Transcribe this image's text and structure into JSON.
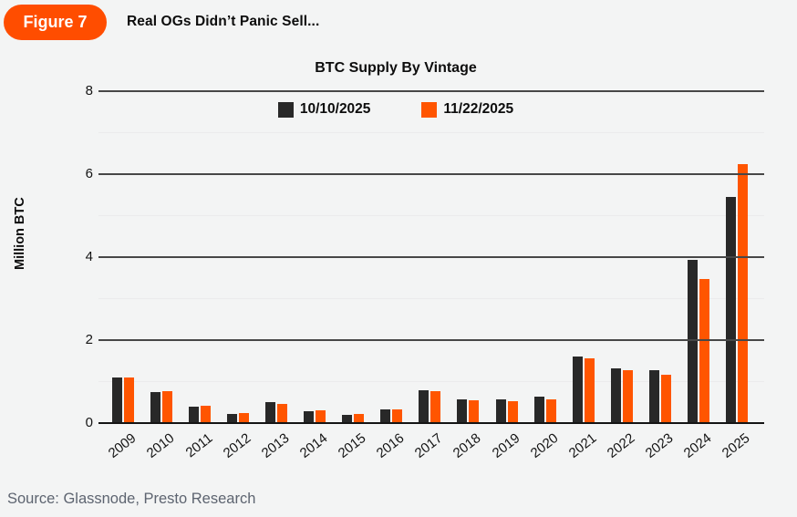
{
  "figure": {
    "badge": "Figure 7",
    "title": "Real OGs Didn’t Panic Sell..."
  },
  "chart_data": {
    "type": "bar",
    "title": "BTC Supply By Vintage",
    "xlabel": "",
    "ylabel": "Million BTC",
    "ylim": [
      0,
      8
    ],
    "yticks": [
      0,
      2,
      4,
      6,
      8
    ],
    "yticks_minor": [
      1,
      3,
      5,
      7
    ],
    "grid": "horizontal, dark major lines at even values, faint minor lines at odd values",
    "legend_position": "top center",
    "categories": [
      "2009",
      "2010",
      "2011",
      "2012",
      "2013",
      "2014",
      "2015",
      "2016",
      "2017",
      "2018",
      "2019",
      "2020",
      "2021",
      "2022",
      "2023",
      "2024",
      "2025"
    ],
    "series": [
      {
        "name": "10/10/2025",
        "color": "#282828",
        "values": [
          1.1,
          0.75,
          0.4,
          0.22,
          0.51,
          0.29,
          0.2,
          0.32,
          0.79,
          0.57,
          0.57,
          0.63,
          1.61,
          1.33,
          1.27,
          3.93,
          5.45
        ]
      },
      {
        "name": "11/22/2025",
        "color": "#FF5500",
        "values": [
          1.11,
          0.76,
          0.41,
          0.24,
          0.46,
          0.3,
          0.21,
          0.33,
          0.76,
          0.56,
          0.53,
          0.58,
          1.55,
          1.27,
          1.17,
          3.47,
          6.24
        ]
      }
    ]
  },
  "source": "Source: Glassnode, Presto Research",
  "colors": {
    "background": "#f3f4f4",
    "badge": "#FF4D00",
    "grid_major": "#474747",
    "grid_minor": "#ebebec",
    "axis_zero_line": "#141414",
    "text": "#0d0d0d",
    "source_text": "#5d6470"
  }
}
